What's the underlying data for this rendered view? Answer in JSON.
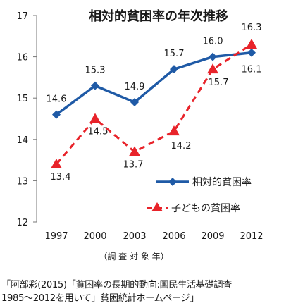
{
  "chart_data": {
    "type": "line",
    "title": "相対的貧困率の年次推移",
    "xlabel": "（調 査 対 象 年）",
    "ylabel": "",
    "categories": [
      "1997",
      "2000",
      "2003",
      "2006",
      "2009",
      "2012"
    ],
    "ylim": [
      12,
      17
    ],
    "yticks": [
      "12",
      "13",
      "14",
      "15",
      "16",
      "17"
    ],
    "grid": false,
    "legend_placement": "bottom-right",
    "series": [
      {
        "name": "相対的貧困率",
        "values": [
          14.6,
          15.3,
          14.9,
          15.7,
          16.0,
          16.1
        ],
        "labels": [
          "14.6",
          "15.3",
          "14.9",
          "15.7",
          "16.0",
          "16.1"
        ],
        "color": "#1f5aa6",
        "style": "solid",
        "marker": "diamond"
      },
      {
        "name": "子どもの貧困率",
        "values": [
          13.4,
          14.5,
          13.7,
          14.2,
          15.7,
          16.3
        ],
        "labels": [
          "13.4",
          "14.5",
          "13.7",
          "14.2",
          "15.7",
          "16.3"
        ],
        "color": "#e8232a",
        "style": "dashed",
        "marker": "triangle"
      }
    ]
  },
  "caption": {
    "line1": "「阿部彩(2015)「貧困率の長期的動向:国民生活基礎調査",
    "line2": "1985～2012を用いて」貧困統計ホームページ」"
  },
  "colors": {
    "title": "#1a1a1a",
    "axis": "#555555"
  }
}
